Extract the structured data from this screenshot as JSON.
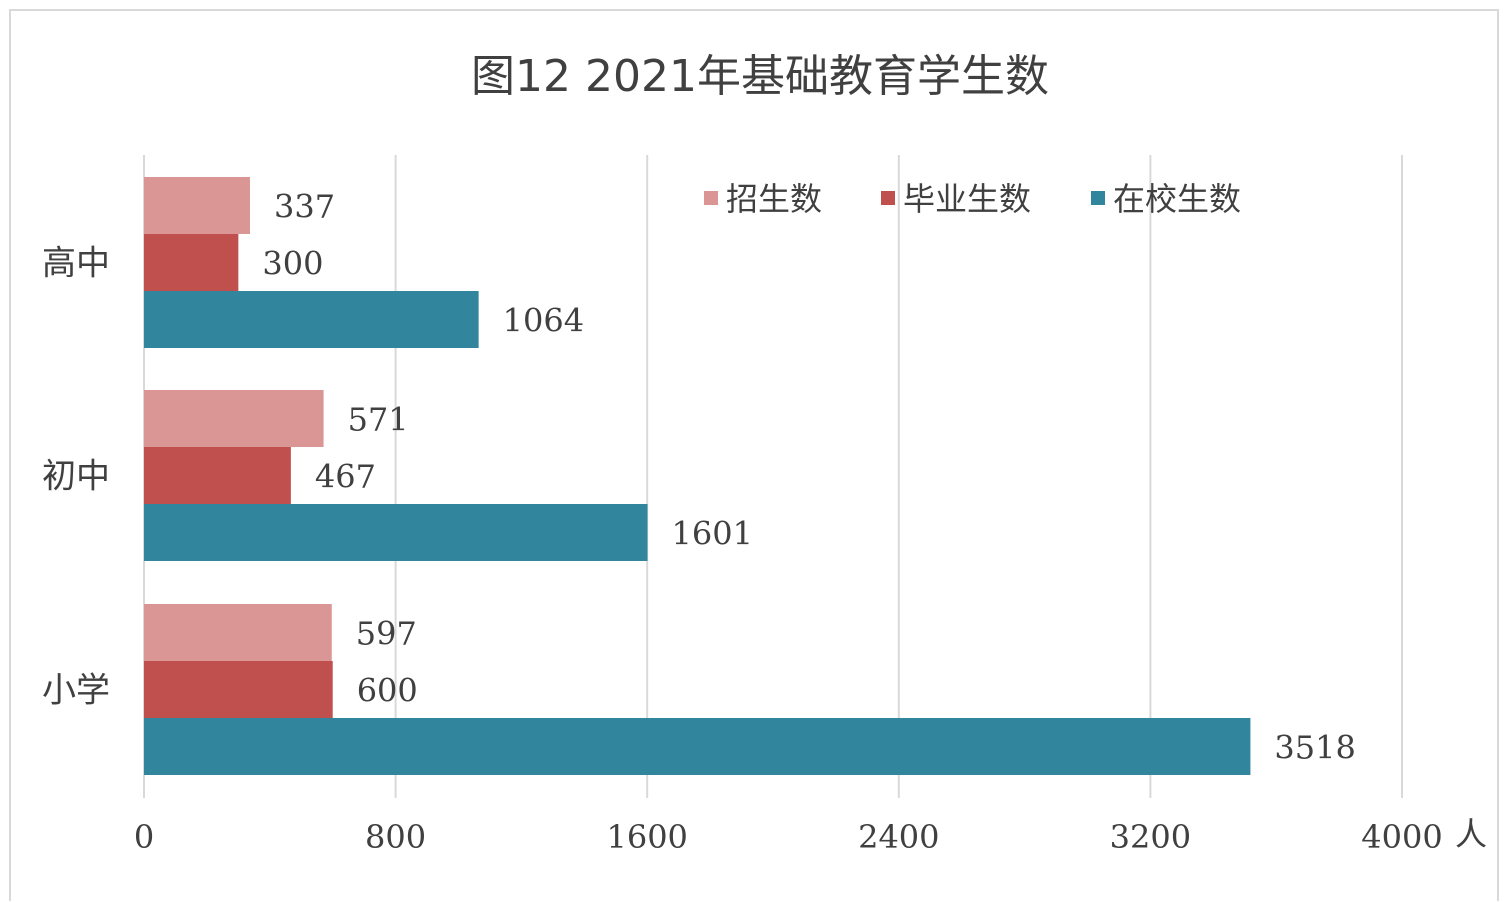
{
  "chart_data": {
    "type": "bar",
    "orientation": "horizontal",
    "title": "图12  2021年基础教育学生数",
    "unit": "人",
    "categories": [
      "高中",
      "初中",
      "小学"
    ],
    "series": [
      {
        "name": "招生数",
        "color": "#d99694",
        "values": [
          337,
          571,
          597
        ]
      },
      {
        "name": "毕业生数",
        "color": "#c0504d",
        "values": [
          300,
          467,
          600
        ]
      },
      {
        "name": "在校生数",
        "color": "#31859c",
        "values": [
          1064,
          1601,
          3518
        ]
      }
    ],
    "xlim": [
      0,
      4000
    ],
    "xticks": [
      0,
      800,
      1600,
      2400,
      3200,
      4000
    ],
    "grid": true,
    "legend_position": "top-right"
  }
}
